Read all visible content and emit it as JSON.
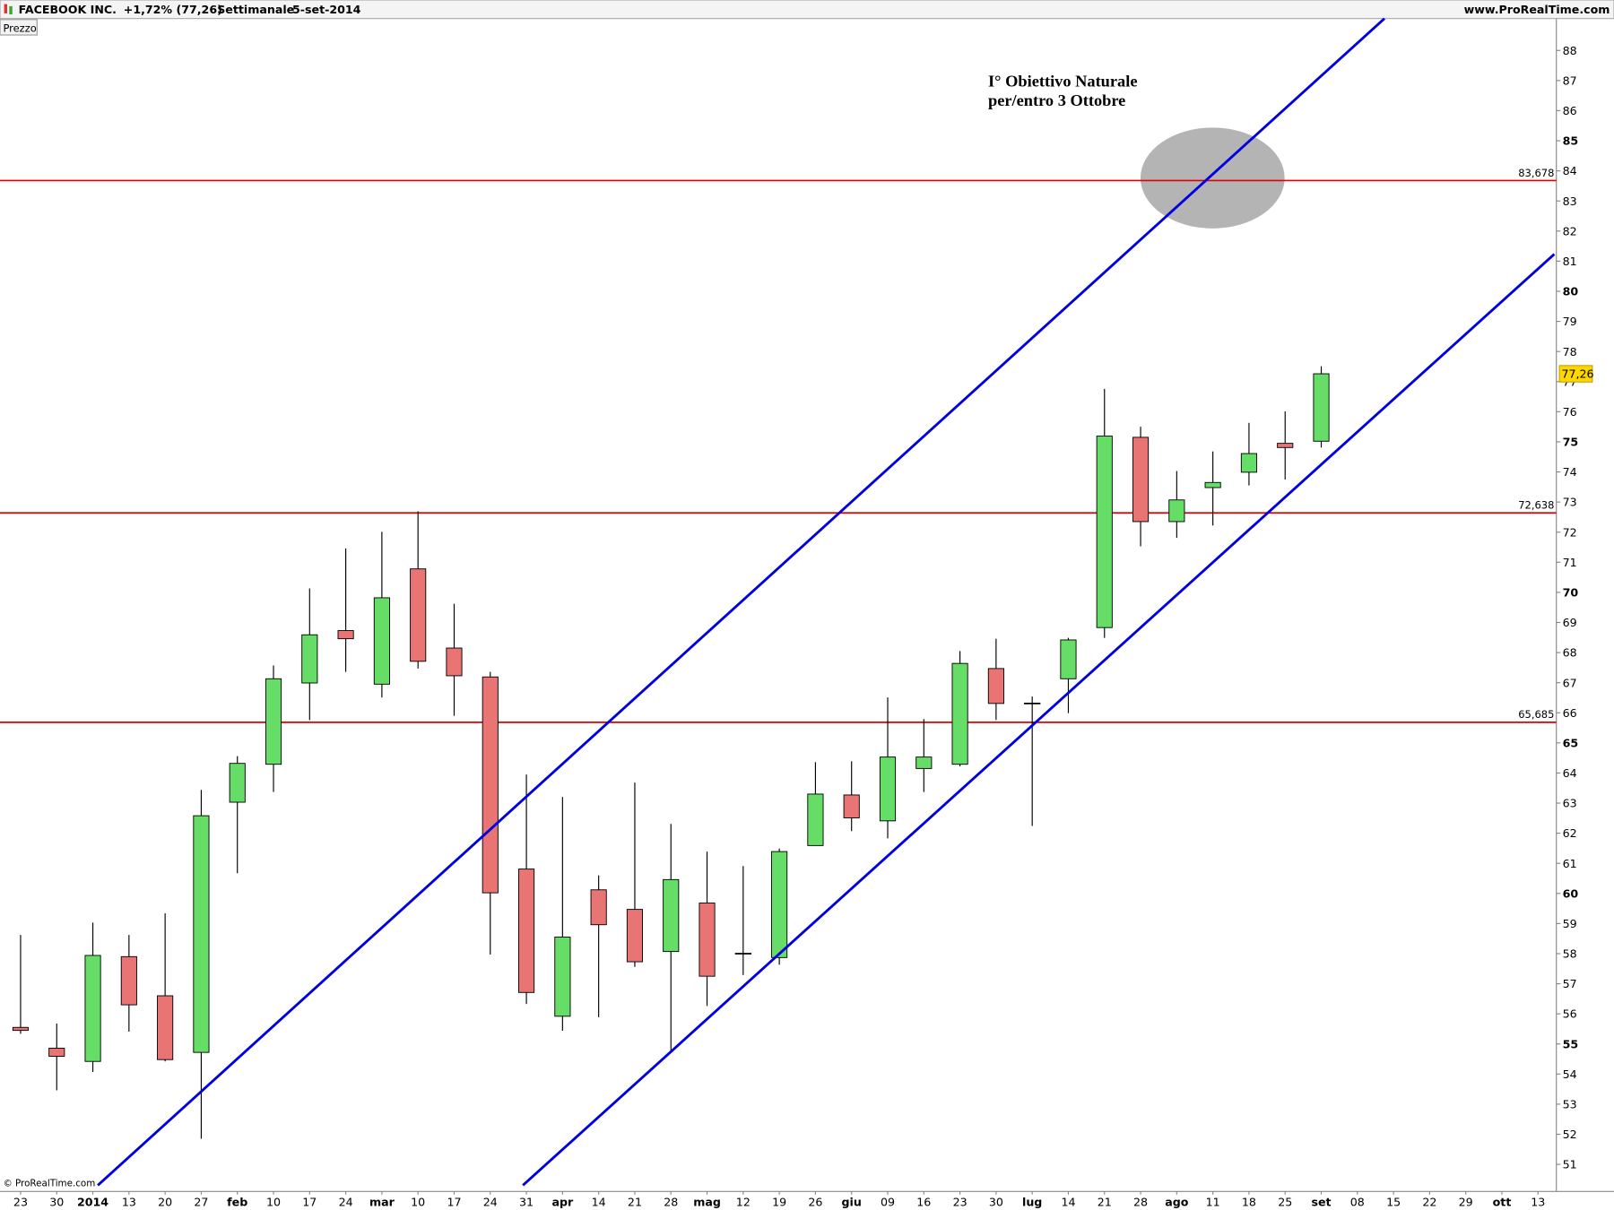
{
  "chart_data": {
    "type": "candlestick",
    "title": "FACEBOOK INC.",
    "change": "+1,72% (77,26)",
    "period": "Settimanale",
    "date": "5-set-2014",
    "source": "www.ProRealTime.com",
    "y_label": "Prezzo",
    "copyright": "© ProRealTime.com",
    "annotation": [
      "I° Obiettivo Naturale",
      "per/entro 3 Ottobre"
    ],
    "categories": [
      "23",
      "30",
      "2014",
      "13",
      "20",
      "27",
      "feb",
      "10",
      "17",
      "24",
      "mar",
      "10",
      "17",
      "24",
      "31",
      "apr",
      "14",
      "21",
      "28",
      "mag",
      "12",
      "19",
      "26",
      "giu",
      "09",
      "16",
      "23",
      "30",
      "lug",
      "14",
      "21",
      "28",
      "ago",
      "11",
      "18",
      "25",
      "set",
      "08",
      "15",
      "22",
      "29",
      "ott",
      "13"
    ],
    "series": [
      {
        "name": "open",
        "values": [
          55.55,
          54.86,
          54.42,
          57.9,
          56.6,
          54.72,
          63.03,
          64.29,
          66.99,
          68.73,
          66.95,
          70.78,
          68.15,
          67.19,
          60.81,
          55.92,
          60.12,
          59.47,
          58.07,
          59.68,
          58.0,
          57.87,
          61.59,
          63.27,
          62.41,
          64.15,
          64.29,
          67.47,
          66.31,
          67.13,
          68.83,
          75.15,
          72.35,
          73.48,
          73.99,
          74.95,
          75.02,
          null,
          null,
          null,
          null,
          null,
          null
        ]
      },
      {
        "name": "high",
        "values": [
          58.62,
          55.68,
          59.03,
          58.62,
          59.34,
          63.44,
          64.56,
          67.57,
          70.13,
          71.46,
          72.01,
          72.69,
          69.62,
          67.36,
          63.95,
          63.2,
          60.6,
          63.68,
          62.31,
          61.39,
          60.91,
          61.49,
          64.36,
          64.39,
          66.51,
          65.79,
          68.05,
          68.46,
          66.54,
          68.49,
          76.76,
          75.5,
          74.03,
          74.68,
          75.63,
          76.01,
          77.51,
          null,
          null,
          null,
          null,
          null,
          null
        ]
      },
      {
        "name": "low",
        "values": [
          55.34,
          53.46,
          54.07,
          55.41,
          54.42,
          51.85,
          60.67,
          63.37,
          65.76,
          67.36,
          66.51,
          67.47,
          65.9,
          57.97,
          56.33,
          55.44,
          55.89,
          57.56,
          54.76,
          56.26,
          57.29,
          57.63,
          61.59,
          62.07,
          61.83,
          63.37,
          64.22,
          65.76,
          62.24,
          65.99,
          68.49,
          71.53,
          71.81,
          72.22,
          73.55,
          73.75,
          74.81,
          null,
          null,
          null,
          null,
          null,
          null
        ]
      },
      {
        "name": "close",
        "values": [
          55.45,
          54.59,
          57.94,
          56.3,
          54.48,
          62.58,
          64.32,
          67.13,
          68.59,
          68.46,
          69.82,
          67.71,
          67.23,
          60.02,
          56.71,
          58.55,
          58.96,
          57.73,
          60.46,
          57.25,
          58.0,
          61.39,
          63.3,
          62.51,
          64.53,
          64.53,
          67.64,
          66.31,
          66.31,
          68.42,
          75.19,
          72.35,
          73.07,
          73.65,
          74.61,
          74.81,
          77.26,
          null,
          null,
          null,
          null,
          null,
          null
        ]
      }
    ],
    "up_color": "#66dd66",
    "down_color": "#e87474",
    "last_price": {
      "value": 77.26,
      "label": "77,26"
    },
    "levels": [
      {
        "value": 83.678,
        "label": "83,678"
      },
      {
        "value": 72.638,
        "label": "72,638"
      },
      {
        "value": 65.685,
        "label": "65,685"
      }
    ],
    "level_color": "#e00000",
    "ylim": [
      50.1,
      89.06
    ],
    "yticks": [
      51,
      52,
      53,
      54,
      55,
      56,
      57,
      58,
      59,
      60,
      61,
      62,
      63,
      64,
      65,
      66,
      67,
      68,
      69,
      70,
      71,
      72,
      73,
      74,
      75,
      76,
      77,
      78,
      79,
      80,
      81,
      82,
      83,
      84,
      85,
      86,
      87,
      88
    ]
  }
}
